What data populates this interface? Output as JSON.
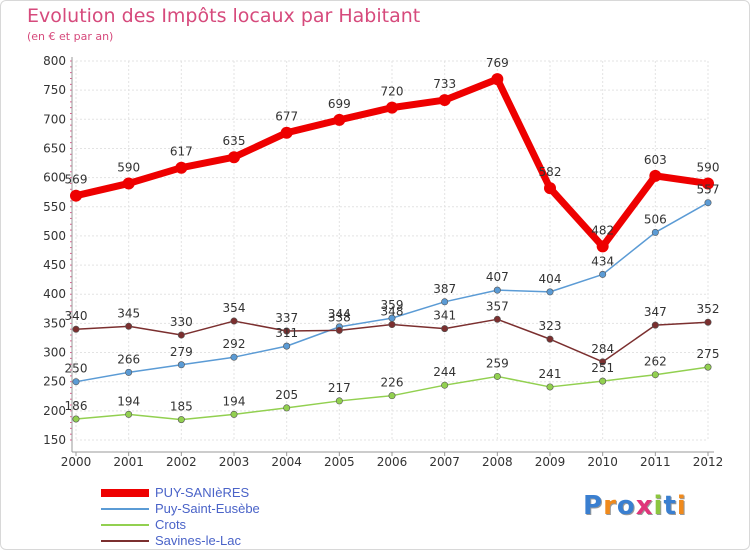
{
  "title": "Evolution des Impôts locaux par Habitant",
  "subtitle": "(en € et par an)",
  "chart_data": {
    "type": "line",
    "title": "Evolution des Impôts locaux par Habitant",
    "subtitle": "(en € et par an)",
    "xlabel": "",
    "ylabel": "",
    "x": [
      "2000",
      "2001",
      "2002",
      "2003",
      "2004",
      "2005",
      "2006",
      "2007",
      "2008",
      "2009",
      "2010",
      "2011",
      "2012"
    ],
    "ylim": [
      150,
      800
    ],
    "yticks": [
      150,
      200,
      250,
      300,
      350,
      400,
      450,
      500,
      550,
      600,
      650,
      700,
      750,
      800
    ],
    "grid": true,
    "series": [
      {
        "name": "PUY-SANIèRES",
        "color": "#ee0000",
        "values": [
          569,
          590,
          617,
          635,
          677,
          699,
          720,
          733,
          769,
          582,
          482,
          603,
          590
        ]
      },
      {
        "name": "Puy-Saint-Eusèbe",
        "color": "#5b9bd5",
        "values": [
          250,
          266,
          279,
          292,
          311,
          344,
          359,
          387,
          407,
          404,
          434,
          506,
          557
        ]
      },
      {
        "name": "Crots",
        "color": "#92d050",
        "values": [
          186,
          194,
          185,
          194,
          205,
          217,
          226,
          244,
          259,
          241,
          251,
          262,
          275
        ]
      },
      {
        "name": "Savines-le-Lac",
        "color": "#7b2f2f",
        "values": [
          340,
          345,
          330,
          354,
          337,
          338,
          348,
          341,
          357,
          323,
          284,
          347,
          352
        ]
      }
    ]
  },
  "legend": [
    {
      "label": "PUY-SANIèRES",
      "color": "#ee0000"
    },
    {
      "label": "Puy-Saint-Eusèbe",
      "color": "#5b9bd5"
    },
    {
      "label": "Crots",
      "color": "#92d050"
    },
    {
      "label": "Savines-le-Lac",
      "color": "#7b2f2f"
    }
  ],
  "logo": {
    "text": "Proxiti",
    "letters": [
      "P",
      "r",
      "o",
      "x",
      "i",
      "t",
      "i"
    ],
    "colors": [
      "#3a7fd0",
      "#f08a1c",
      "#3a7fd0",
      "#e0357a",
      "#8cc63f",
      "#3a7fd0",
      "#f08a1c"
    ]
  }
}
